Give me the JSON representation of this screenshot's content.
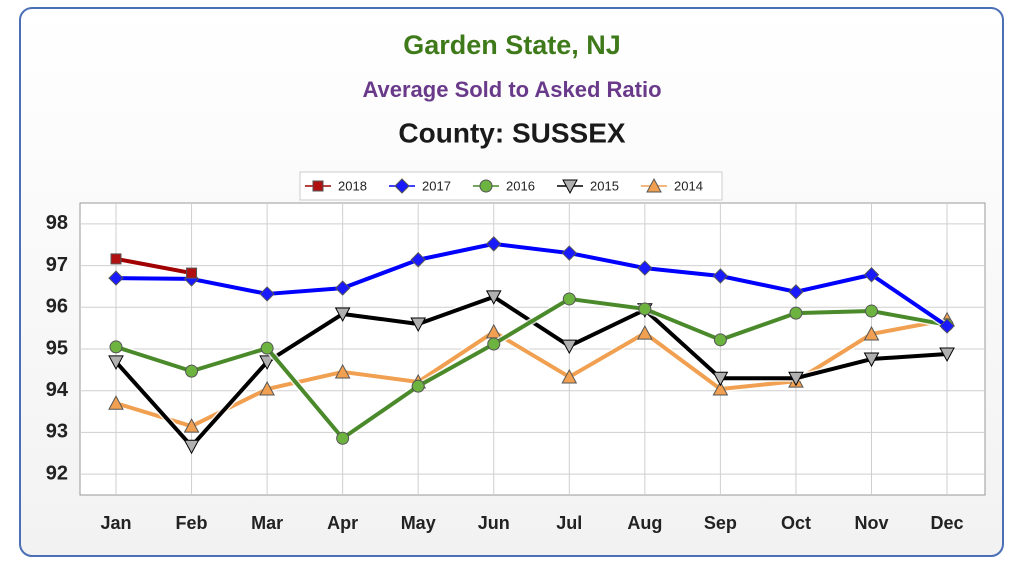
{
  "chart_data": {
    "type": "line",
    "title": "Garden State, NJ",
    "subtitle": "Average Sold to Asked Ratio",
    "heading": "County: SUSSEX",
    "categories": [
      "Jan",
      "Feb",
      "Mar",
      "Apr",
      "May",
      "Jun",
      "Jul",
      "Aug",
      "Sep",
      "Oct",
      "Nov",
      "Dec"
    ],
    "series": [
      {
        "name": "2018",
        "color": "#a00000",
        "marker": "square",
        "marker_color": "#b01010",
        "values": [
          97.16,
          96.82,
          null,
          null,
          null,
          null,
          null,
          null,
          null,
          null,
          null,
          null
        ]
      },
      {
        "name": "2017",
        "color": "#0000ff",
        "marker": "diamond",
        "marker_color": "#1a1aff",
        "values": [
          96.7,
          96.68,
          96.32,
          96.46,
          97.14,
          97.52,
          97.3,
          96.94,
          96.75,
          96.37,
          96.78,
          95.55
        ]
      },
      {
        "name": "2016",
        "color": "#4a8a2a",
        "marker": "circle",
        "marker_color": "#6cb33f",
        "values": [
          95.05,
          94.47,
          95.02,
          92.86,
          94.11,
          95.12,
          96.2,
          95.96,
          95.22,
          95.86,
          95.91,
          95.58
        ]
      },
      {
        "name": "2015",
        "color": "#000000",
        "marker": "triangle-down",
        "marker_color": "#b0b0b0",
        "values": [
          94.69,
          92.67,
          94.69,
          95.84,
          95.6,
          96.25,
          95.07,
          95.94,
          94.3,
          94.3,
          94.76,
          94.88
        ]
      },
      {
        "name": "2014",
        "color": "#f0a050",
        "marker": "triangle-up",
        "marker_color": "#f0a050",
        "values": [
          93.7,
          93.15,
          94.04,
          94.45,
          94.21,
          95.41,
          94.33,
          95.38,
          94.04,
          94.23,
          95.36,
          95.7
        ]
      }
    ],
    "ylim": [
      91.5,
      98.5
    ],
    "yticks": [
      92,
      93,
      94,
      95,
      96,
      97,
      98
    ],
    "grid": true,
    "legend": "top"
  }
}
